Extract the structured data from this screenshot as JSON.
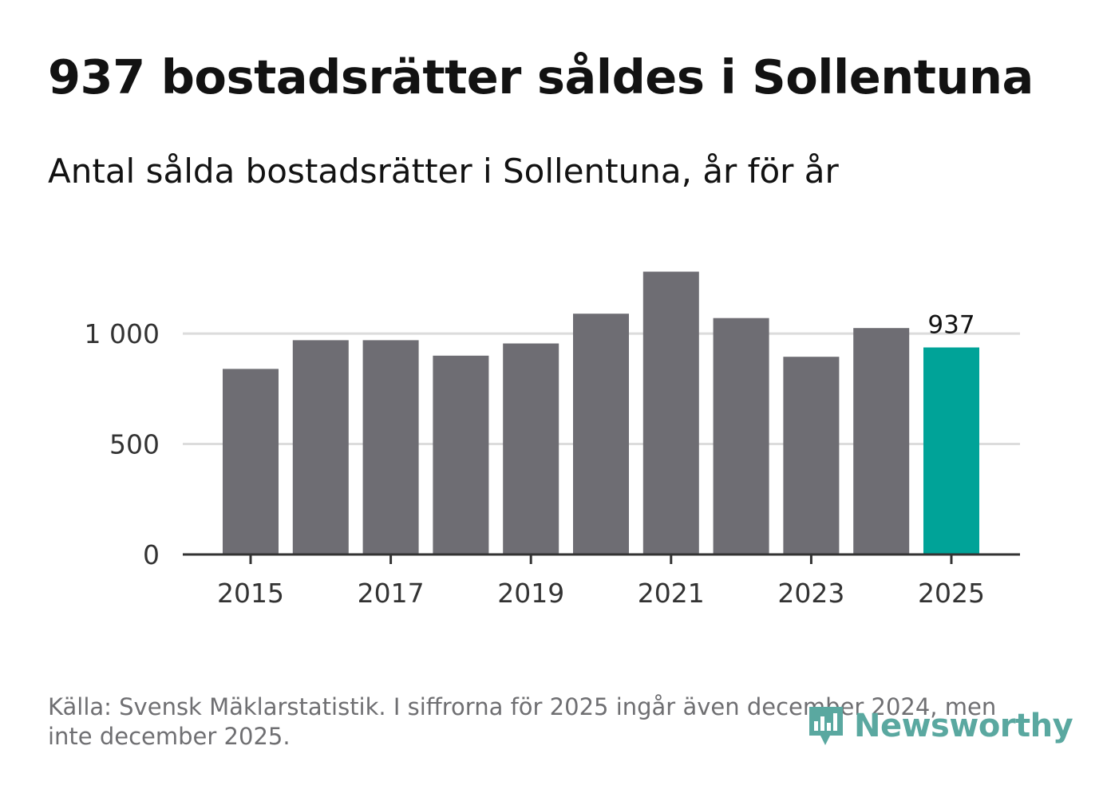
{
  "header": {
    "title": "937 bostadsrätter såldes i Sollentuna",
    "subtitle": "Antal sålda bostadsrätter i Sollentuna, år för år"
  },
  "footer": {
    "source": "Källa: Svensk Mäklarstatistik. I siffrorna för 2025 ingår även december 2024, men inte december 2025.",
    "brand": "Newsworthy"
  },
  "colors": {
    "bar": "#6e6d73",
    "highlight": "#00a398",
    "grid": "#dcdcdc",
    "axis": "#333333",
    "brand": "#5aa8a0"
  },
  "chart_data": {
    "type": "bar",
    "title": "937 bostadsrätter såldes i Sollentuna",
    "subtitle": "Antal sålda bostadsrätter i Sollentuna, år för år",
    "xlabel": "",
    "ylabel": "",
    "categories": [
      "2015",
      "2016",
      "2017",
      "2018",
      "2019",
      "2020",
      "2021",
      "2022",
      "2023",
      "2024",
      "2025"
    ],
    "values": [
      840,
      970,
      970,
      900,
      955,
      1090,
      1280,
      1070,
      895,
      1025,
      937
    ],
    "highlight_index": 10,
    "data_labels": [
      {
        "index": 10,
        "text": "937"
      }
    ],
    "x_tick_labels": [
      "2015",
      "2017",
      "2019",
      "2021",
      "2023",
      "2025"
    ],
    "y_ticks": [
      {
        "value": 0,
        "label": "0"
      },
      {
        "value": 500,
        "label": "500"
      },
      {
        "value": 1000,
        "label": "1 000"
      }
    ],
    "ylim": [
      0,
      1300
    ],
    "grid": true
  }
}
